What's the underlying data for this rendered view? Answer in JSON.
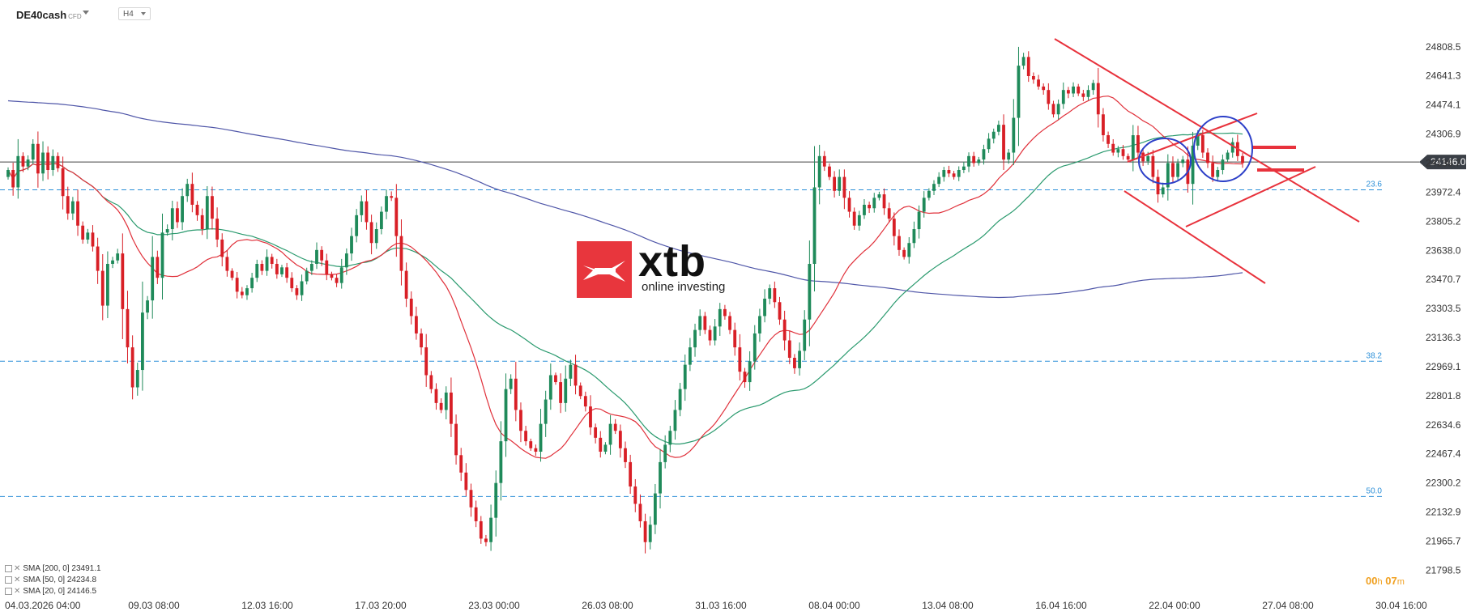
{
  "header": {
    "symbol": "DE40cash",
    "instrument_type": "CFD",
    "timeframe": "H4"
  },
  "logo": {
    "brand": "xtb",
    "tagline": "online investing"
  },
  "timer": {
    "hours": "00",
    "minutes": "07"
  },
  "legend": [
    "SMA [200, 0] 23491.1",
    "SMA [50, 0] 24234.8",
    "SMA [20, 0] 24146.5"
  ],
  "colors": {
    "bull": "#1f8a5a",
    "bear": "#d81f26",
    "sma200": "#4f56a8",
    "sma50": "#2a9a6e",
    "sma20": "#e0303a",
    "fib": "#2b8fd8",
    "annotation_red": "#e8323c",
    "annotation_blue": "#2c3fc8",
    "price_line": "#444444"
  },
  "chart_data": {
    "type": "candlestick",
    "y_axis": {
      "range": [
        21698,
        24910
      ],
      "ticks": [
        "24808.5",
        "24641.3",
        "24474.1",
        "24306.9",
        "24139.7",
        "23972.4",
        "23805.2",
        "23638.0",
        "23470.7",
        "23303.5",
        "23136.3",
        "22969.1",
        "22801.8",
        "22634.6",
        "22467.4",
        "22300.2",
        "22132.9",
        "21965.7",
        "21798.5"
      ],
      "current_price": "24146.0"
    },
    "x_axis": {
      "ticks": [
        "04.03.2026 04:00",
        "09.03 08:00",
        "12.03 16:00",
        "17.03 20:00",
        "23.03 00:00",
        "26.03 08:00",
        "31.03 16:00",
        "08.04 00:00",
        "13.04 08:00",
        "16.04 16:00",
        "22.04 00:00",
        "27.04 08:00",
        "30.04 16:00"
      ]
    },
    "fibonacci": [
      {
        "label": "23.6",
        "value": 23986
      },
      {
        "label": "38.2",
        "value": 23000
      },
      {
        "label": "50.0",
        "value": 22222
      }
    ],
    "candles_close": [
      24100,
      24000,
      24180,
      24120,
      24160,
      24250,
      24080,
      24200,
      24100,
      24180,
      24110,
      23950,
      23850,
      23920,
      23780,
      23700,
      23740,
      23660,
      23520,
      23320,
      23560,
      23580,
      23620,
      23300,
      23080,
      22850,
      22950,
      23280,
      23350,
      23600,
      23480,
      23740,
      23760,
      23880,
      23800,
      23950,
      24020,
      23900,
      23840,
      23760,
      23950,
      23820,
      23700,
      23600,
      23520,
      23480,
      23400,
      23380,
      23420,
      23480,
      23560,
      23520,
      23600,
      23560,
      23500,
      23540,
      23480,
      23420,
      23380,
      23460,
      23520,
      23560,
      23640,
      23580,
      23500,
      23480,
      23450,
      23540,
      23620,
      23720,
      23840,
      23920,
      23800,
      23680,
      23760,
      23860,
      23950,
      23940,
      23720,
      23520,
      23360,
      23260,
      23160,
      23080,
      22920,
      22840,
      22760,
      22720,
      22820,
      22640,
      22460,
      22360,
      22260,
      22160,
      22080,
      21980,
      21960,
      22100,
      22300,
      22540,
      22840,
      22900,
      22720,
      22600,
      22540,
      22500,
      22480,
      22640,
      22780,
      22920,
      22880,
      22760,
      22900,
      22980,
      22860,
      22800,
      22740,
      22620,
      22560,
      22480,
      22520,
      22640,
      22600,
      22500,
      22420,
      22280,
      22180,
      22080,
      21960,
      22060,
      22240,
      22420,
      22520,
      22600,
      22720,
      22840,
      22980,
      23080,
      23180,
      23260,
      23180,
      23120,
      23200,
      23300,
      23260,
      23180,
      23080,
      22940,
      22880,
      23000,
      23160,
      23260,
      23360,
      23420,
      23340,
      23240,
      23120,
      23020,
      22960,
      23060,
      23240,
      23560,
      24000,
      24180,
      24120,
      24060,
      23980,
      24060,
      23940,
      23860,
      23780,
      23840,
      23900,
      23880,
      23940,
      23960,
      23880,
      23820,
      23720,
      23640,
      23600,
      23680,
      23760,
      23860,
      23940,
      23980,
      24020,
      24060,
      24100,
      24080,
      24060,
      24100,
      24120,
      24180,
      24140,
      24160,
      24220,
      24280,
      24320,
      24360,
      24160,
      24200,
      24400,
      24700,
      24750,
      24640,
      24620,
      24580,
      24560,
      24480,
      24420,
      24480,
      24560,
      24540,
      24580,
      24540,
      24520,
      24560,
      24600,
      24420,
      24300,
      24250,
      24200,
      24220,
      24180,
      24160,
      24300,
      24200,
      24150,
      24180,
      24060,
      23960,
      24000,
      24140,
      24060,
      24140,
      24160,
      24020,
      24240,
      24300,
      24200,
      24140,
      24060,
      24100,
      24160,
      24200,
      24260,
      24180,
      24140
    ],
    "trend_lines": [
      {
        "from": [
          "16.04 16:00",
          24870
        ],
        "to": [
          "27.04 08:00",
          23810
        ],
        "label": ""
      },
      {
        "from": [
          "22.04 00:00",
          23940
        ],
        "to": [
          "27.04 08:00",
          23480
        ],
        "label": ""
      }
    ]
  }
}
